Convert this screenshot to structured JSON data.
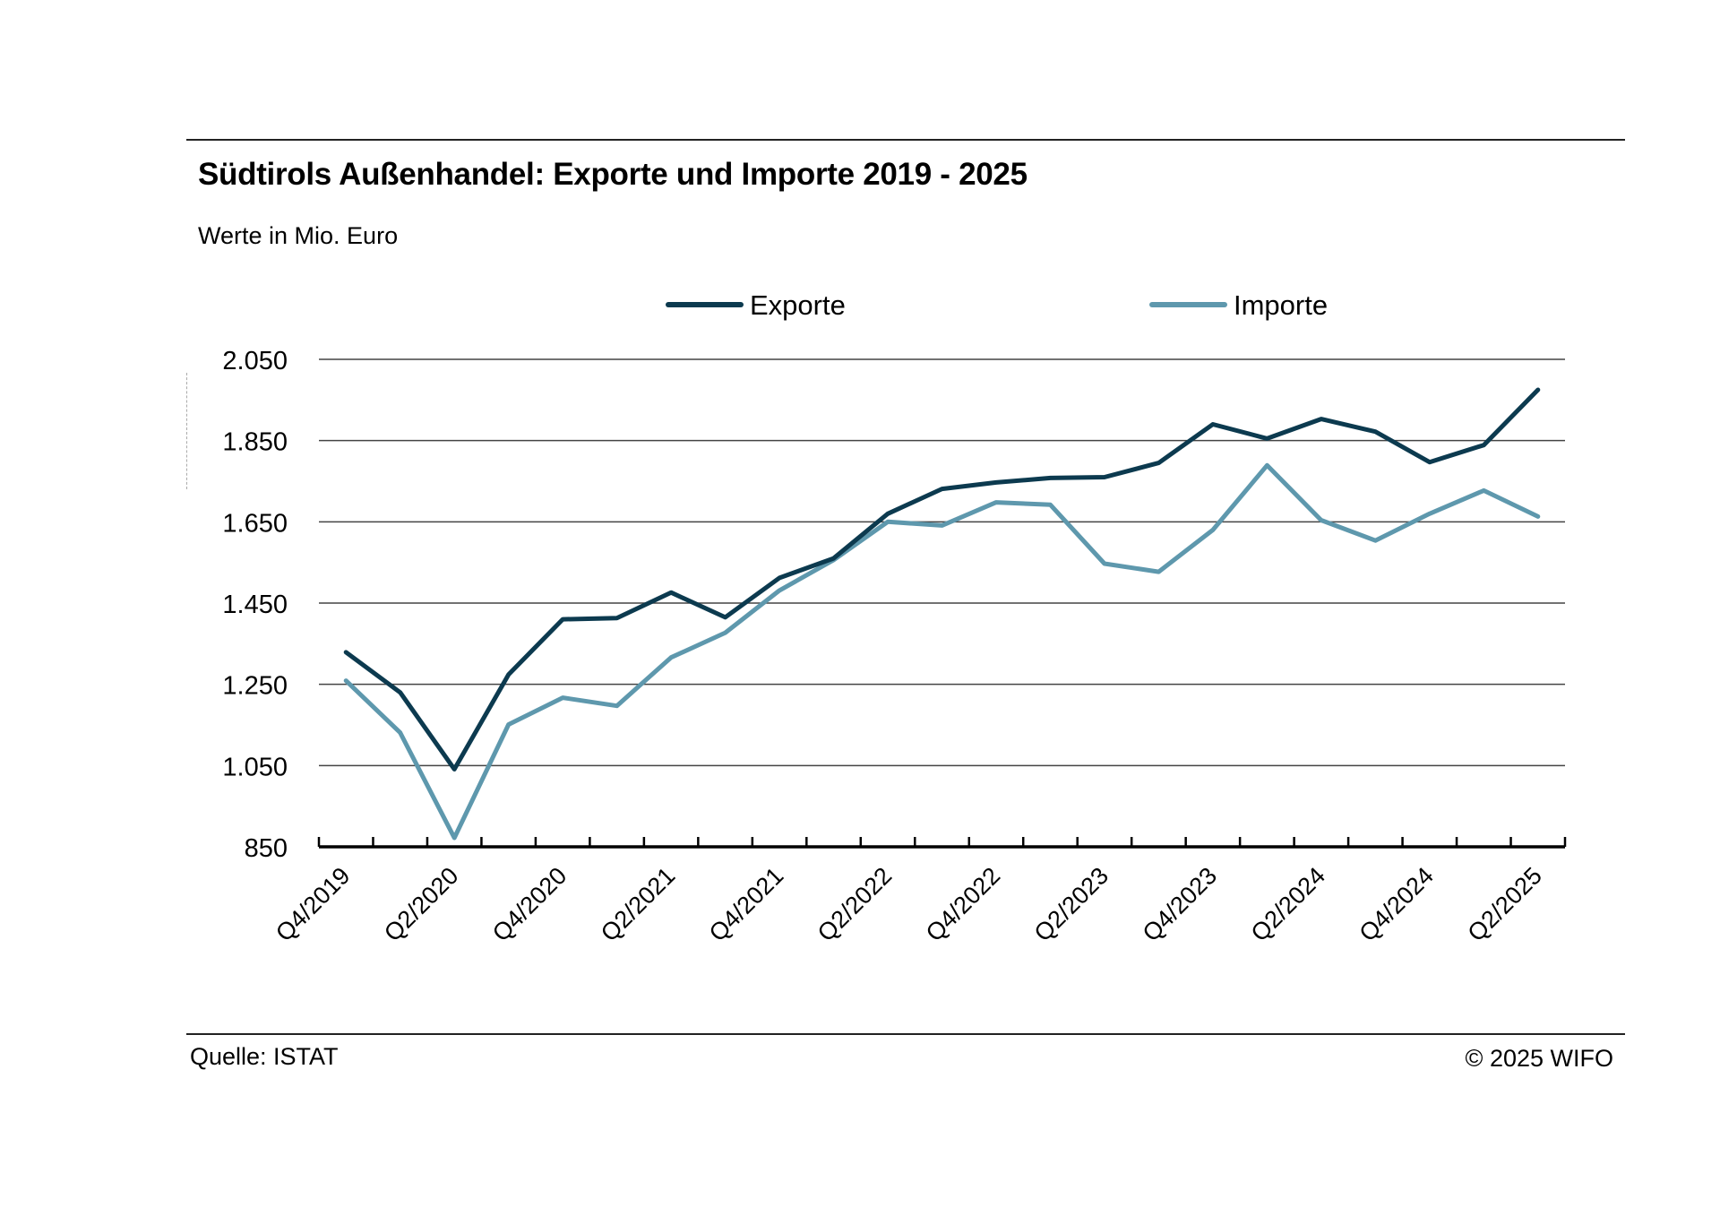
{
  "header": {
    "title": "Südtirols Außenhandel: Exporte und Importe 2019 - 2025",
    "subtitle": "Werte in Mio. Euro"
  },
  "footer": {
    "source": "Quelle: ISTAT",
    "copyright": "© 2025  WIFO"
  },
  "colors": {
    "exports": "#0c3a4f",
    "imports": "#5e98ad",
    "grid": "#444444",
    "axis": "#000000"
  },
  "chart_data": {
    "type": "line",
    "title": "Südtirols Außenhandel: Exporte und Importe 2019 - 2025",
    "subtitle": "Werte in Mio. Euro",
    "xlabel": "",
    "ylabel": "",
    "ylim": [
      850,
      2050
    ],
    "yticks": [
      850,
      1050,
      1250,
      1450,
      1650,
      1850,
      2050
    ],
    "ytick_labels": [
      "850",
      "1.050",
      "1.250",
      "1.450",
      "1.650",
      "1.850",
      "2.050"
    ],
    "grid": true,
    "legend_position": "top-center",
    "x": [
      "Q4/2019",
      "Q1/2020",
      "Q2/2020",
      "Q3/2020",
      "Q4/2020",
      "Q1/2021",
      "Q2/2021",
      "Q3/2021",
      "Q4/2021",
      "Q1/2022",
      "Q2/2022",
      "Q3/2022",
      "Q4/2022",
      "Q1/2023",
      "Q2/2023",
      "Q3/2023",
      "Q4/2023",
      "Q1/2024",
      "Q2/2024",
      "Q3/2024",
      "Q4/2024",
      "Q1/2025",
      "Q2/2025"
    ],
    "x_tick_labels_shown": [
      "Q4/2019",
      "Q2/2020",
      "Q4/2020",
      "Q2/2021",
      "Q4/2021",
      "Q2/2022",
      "Q4/2022",
      "Q2/2023",
      "Q4/2023",
      "Q2/2024",
      "Q4/2024",
      "Q2/2025"
    ],
    "series": [
      {
        "name": "Exporte",
        "key": "exports",
        "values": [
          1329,
          1230,
          1041,
          1274,
          1410,
          1413,
          1476,
          1415,
          1512,
          1560,
          1670,
          1731,
          1747,
          1758,
          1760,
          1795,
          1890,
          1855,
          1903,
          1872,
          1797,
          1839,
          1975
        ]
      },
      {
        "name": "Importe",
        "key": "imports",
        "values": [
          1259,
          1131,
          872,
          1151,
          1217,
          1197,
          1316,
          1377,
          1481,
          1556,
          1650,
          1641,
          1698,
          1692,
          1547,
          1527,
          1630,
          1789,
          1654,
          1604,
          1670,
          1727,
          1663
        ]
      }
    ]
  }
}
